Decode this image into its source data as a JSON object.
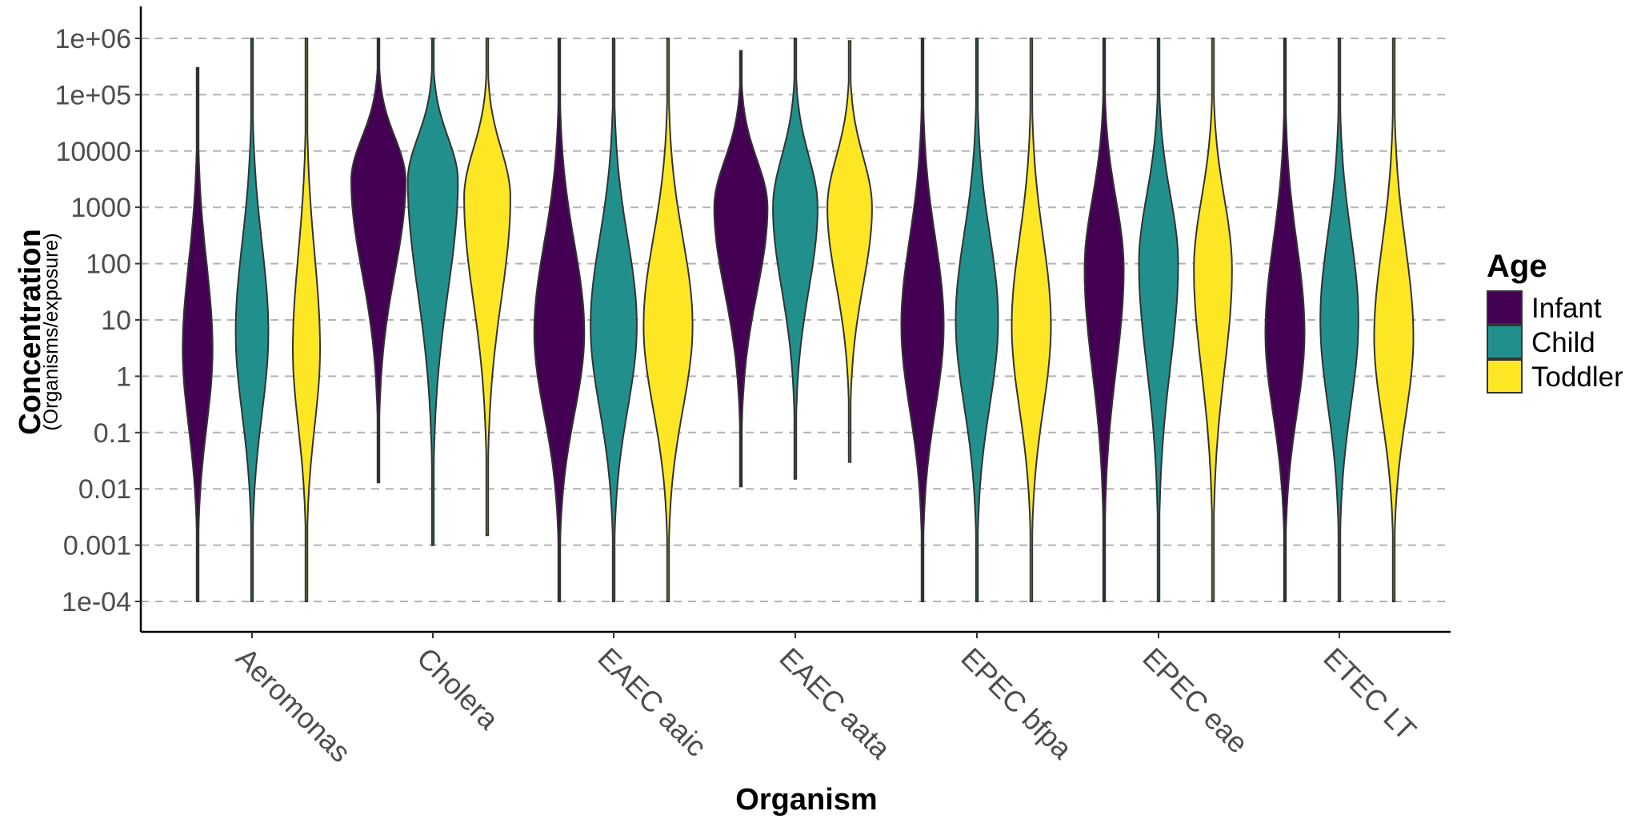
{
  "chart_data": {
    "type": "violin",
    "xlabel": "Organism",
    "ylabel": "Concentration",
    "ylabel_sub": "(Organisms/exposure)",
    "y_scale": "log10",
    "ylim": [
      0.0001,
      1000000
    ],
    "y_ticks": [
      "1e-04",
      "0.001",
      "0.01",
      "0.1",
      "1",
      "10",
      "100",
      "1000",
      "10000",
      "1e+05",
      "1e+06"
    ],
    "y_tick_values": [
      0.0001,
      0.001,
      0.01,
      0.1,
      1,
      10,
      100,
      1000,
      10000,
      100000,
      1000000
    ],
    "grid": "horizontal dashed",
    "categories": [
      "Aeromonas",
      "Cholera",
      "EAEC aaic",
      "EAEC aata",
      "EPEC bfpa",
      "EPEC eae",
      "ETEC LT"
    ],
    "legend": {
      "title": "Age",
      "position": "right",
      "entries": [
        {
          "name": "Infant",
          "color": "#440154"
        },
        {
          "name": "Child",
          "color": "#21908C"
        },
        {
          "name": "Toddler",
          "color": "#FDE725"
        }
      ]
    },
    "series": [
      {
        "name": "Infant",
        "color": "#440154",
        "violins": [
          {
            "min": 0.0001,
            "max": 300000,
            "median": 3,
            "peak_width": 0.55
          },
          {
            "min": 0.013,
            "max": 1000000,
            "median": 3000,
            "peak_width": 1.0
          },
          {
            "min": 0.0001,
            "max": 1000000,
            "median": 6,
            "peak_width": 0.92
          },
          {
            "min": 0.011,
            "max": 600000,
            "median": 1000,
            "peak_width": 0.98
          },
          {
            "min": 0.0001,
            "max": 1000000,
            "median": 8,
            "peak_width": 0.78
          },
          {
            "min": 0.0001,
            "max": 1000000,
            "median": 80,
            "peak_width": 0.72
          },
          {
            "min": 0.0001,
            "max": 1000000,
            "median": 6,
            "peak_width": 0.72
          }
        ]
      },
      {
        "name": "Child",
        "color": "#21908C",
        "violins": [
          {
            "min": 0.0001,
            "max": 1000000,
            "median": 6,
            "peak_width": 0.6
          },
          {
            "min": 0.001,
            "max": 1000000,
            "median": 3000,
            "peak_width": 0.92
          },
          {
            "min": 0.0001,
            "max": 1000000,
            "median": 8,
            "peak_width": 0.85
          },
          {
            "min": 0.015,
            "max": 1000000,
            "median": 1000,
            "peak_width": 0.82
          },
          {
            "min": 0.0001,
            "max": 1000000,
            "median": 10,
            "peak_width": 0.78
          },
          {
            "min": 0.0001,
            "max": 1000000,
            "median": 100,
            "peak_width": 0.72
          },
          {
            "min": 0.0001,
            "max": 1000000,
            "median": 10,
            "peak_width": 0.7
          }
        ]
      },
      {
        "name": "Toddler",
        "color": "#FDE725",
        "violins": [
          {
            "min": 0.0001,
            "max": 1000000,
            "median": 3,
            "peak_width": 0.5
          },
          {
            "min": 0.0015,
            "max": 1000000,
            "median": 1500,
            "peak_width": 0.85
          },
          {
            "min": 0.0001,
            "max": 1000000,
            "median": 8,
            "peak_width": 0.9
          },
          {
            "min": 0.03,
            "max": 900000,
            "median": 1000,
            "peak_width": 0.82
          },
          {
            "min": 0.0001,
            "max": 1000000,
            "median": 8,
            "peak_width": 0.72
          },
          {
            "min": 0.0001,
            "max": 1000000,
            "median": 80,
            "peak_width": 0.7
          },
          {
            "min": 0.0001,
            "max": 1000000,
            "median": 5,
            "peak_width": 0.72
          }
        ]
      }
    ]
  }
}
